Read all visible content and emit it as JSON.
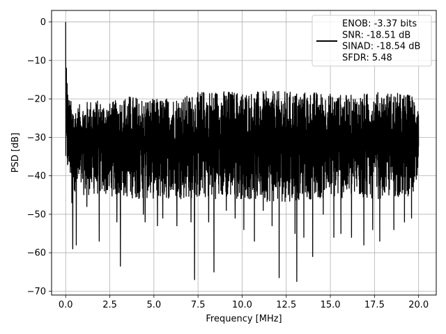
{
  "chart_data": {
    "type": "line",
    "title": "",
    "xlabel": "Frequency [MHz]",
    "ylabel": "PSD [dB]",
    "xlim": [
      -0.8,
      21.0
    ],
    "ylim": [
      -71,
      3
    ],
    "x_ticks": [
      0.0,
      2.5,
      5.0,
      7.5,
      10.0,
      12.5,
      15.0,
      17.5,
      20.0
    ],
    "x_tick_labels": [
      "0.0",
      "2.5",
      "5.0",
      "7.5",
      "10.0",
      "12.5",
      "15.0",
      "17.5",
      "20.0"
    ],
    "y_ticks": [
      0,
      -10,
      -20,
      -30,
      -40,
      -50,
      -60,
      -70
    ],
    "y_tick_labels": [
      "0",
      "−10",
      "−20",
      "−30",
      "−40",
      "−50",
      "−60",
      "−70"
    ],
    "grid": true,
    "legend_position": "top-right",
    "line_color": "#000000",
    "series": [
      {
        "legend_lines": [
          "ENOB: -3.37 bits",
          "SNR: -18.51 dB",
          "SINAD: -18.54 dB",
          "SFDR: 5.48"
        ],
        "x_range": [
          0.0,
          20.0
        ],
        "upper_envelope": [
          [
            0.0,
            -18
          ],
          [
            0.5,
            -22
          ],
          [
            1.0,
            -21
          ],
          [
            1.5,
            -20
          ],
          [
            2.5,
            -21
          ],
          [
            3.5,
            -19
          ],
          [
            5.0,
            -20
          ],
          [
            7.0,
            -19
          ],
          [
            8.0,
            -17.5
          ],
          [
            10.0,
            -18
          ],
          [
            12.0,
            -18
          ],
          [
            14.0,
            -18
          ],
          [
            16.0,
            -19
          ],
          [
            18.0,
            -18
          ],
          [
            20.0,
            -19
          ]
        ],
        "lower_envelope": [
          [
            0.0,
            -38
          ],
          [
            0.5,
            -44
          ],
          [
            1.0,
            -45
          ],
          [
            2.0,
            -45
          ],
          [
            4.0,
            -46
          ],
          [
            6.0,
            -46
          ],
          [
            8.0,
            -46
          ],
          [
            10.0,
            -46
          ],
          [
            12.0,
            -47
          ],
          [
            14.0,
            -46
          ],
          [
            16.0,
            -46
          ],
          [
            18.0,
            -46
          ],
          [
            20.0,
            -45
          ]
        ],
        "peaks": [
          [
            0.0,
            0
          ],
          [
            0.04,
            -12
          ],
          [
            0.08,
            -16
          ],
          [
            0.12,
            -19
          ]
        ],
        "dips": [
          [
            0.35,
            -47
          ],
          [
            0.4,
            -59
          ],
          [
            0.6,
            -58
          ],
          [
            1.2,
            -48
          ],
          [
            1.9,
            -57
          ],
          [
            2.9,
            -52
          ],
          [
            3.1,
            -63.5
          ],
          [
            4.4,
            -50
          ],
          [
            4.5,
            -52
          ],
          [
            5.2,
            -53
          ],
          [
            5.5,
            -51
          ],
          [
            6.3,
            -53
          ],
          [
            7.1,
            -52
          ],
          [
            7.3,
            -67
          ],
          [
            8.1,
            -52
          ],
          [
            8.4,
            -65
          ],
          [
            9.1,
            -49
          ],
          [
            9.6,
            -51
          ],
          [
            10.1,
            -54
          ],
          [
            10.7,
            -57
          ],
          [
            11.2,
            -49
          ],
          [
            11.7,
            -53
          ],
          [
            12.1,
            -66.5
          ],
          [
            13.0,
            -55
          ],
          [
            13.1,
            -67.5
          ],
          [
            13.5,
            -56
          ],
          [
            14.0,
            -61
          ],
          [
            14.6,
            -50
          ],
          [
            15.2,
            -56
          ],
          [
            15.6,
            -55
          ],
          [
            16.2,
            -56
          ],
          [
            16.9,
            -58
          ],
          [
            17.4,
            -54
          ],
          [
            17.8,
            -57
          ],
          [
            18.6,
            -54
          ],
          [
            19.2,
            -52
          ],
          [
            19.6,
            -51
          ]
        ]
      }
    ]
  }
}
